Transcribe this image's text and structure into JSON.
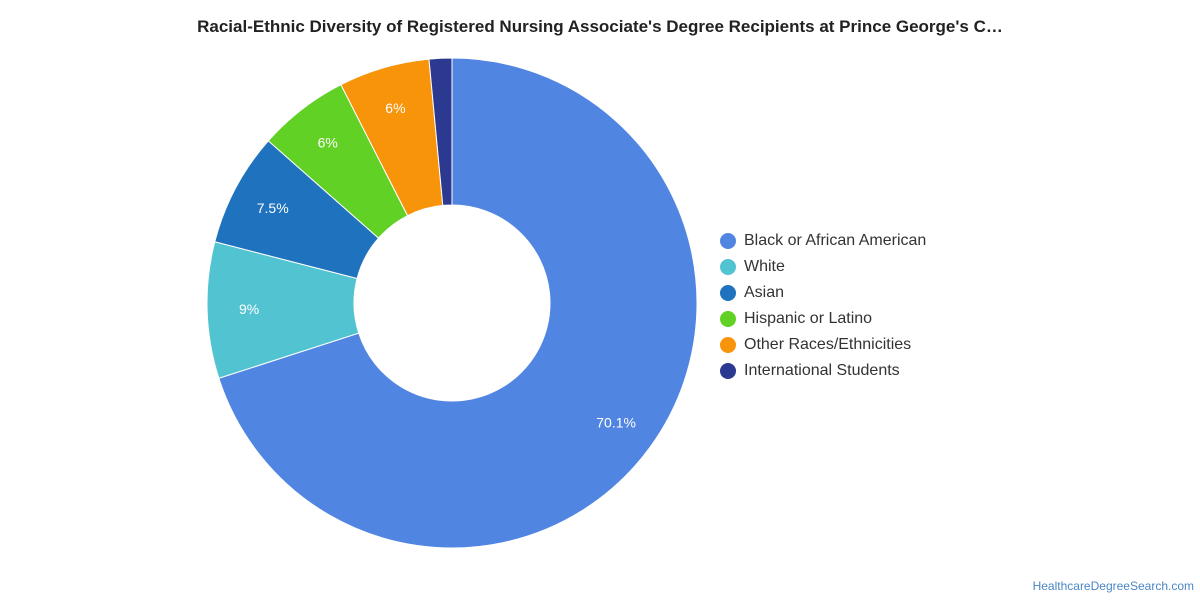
{
  "chart_data": {
    "type": "pie",
    "title": "Racial-Ethnic Diversity of Registered Nursing Associate's Degree Recipients at Prince George's C…",
    "donut": true,
    "legend_position": "right",
    "slices": [
      {
        "name": "Black or African American",
        "value": 70.1,
        "label": "70.1%",
        "color": "#5185e2"
      },
      {
        "name": "White",
        "value": 9,
        "label": "9%",
        "color": "#52c3d1"
      },
      {
        "name": "Asian",
        "value": 7.5,
        "label": "7.5%",
        "color": "#1f72bd"
      },
      {
        "name": "Hispanic or Latino",
        "value": 6,
        "label": "6%",
        "color": "#62d125"
      },
      {
        "name": "Other Races/Ethnicities",
        "value": 6,
        "label": "6%",
        "color": "#f7940a"
      },
      {
        "name": "International Students",
        "value": 1.5,
        "label": "",
        "color": "#2b3990"
      }
    ]
  },
  "footer": {
    "source": "HealthcareDegreeSearch.com"
  }
}
